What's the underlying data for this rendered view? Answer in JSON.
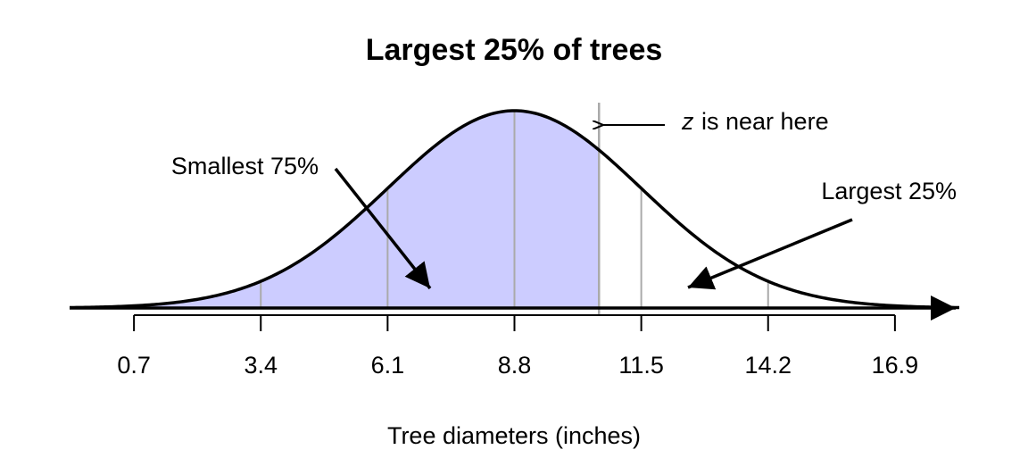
{
  "chart_data": {
    "type": "normal",
    "title": "Largest 25% of trees",
    "x_label": "Tree diameters (inches)",
    "mean": 8.8,
    "sd": 2.7,
    "shade_to": 10.6,
    "shade_color": "#ccccff",
    "xlim": [
      -0.67,
      18.27
    ],
    "xticks": [
      0.7,
      3.4,
      6.1,
      8.8,
      11.5,
      14.2,
      16.9
    ],
    "annotations": {
      "z_symbol": "z",
      "z_text": "is near here",
      "left": "Smallest 75%",
      "right": "Largest 25%"
    }
  }
}
